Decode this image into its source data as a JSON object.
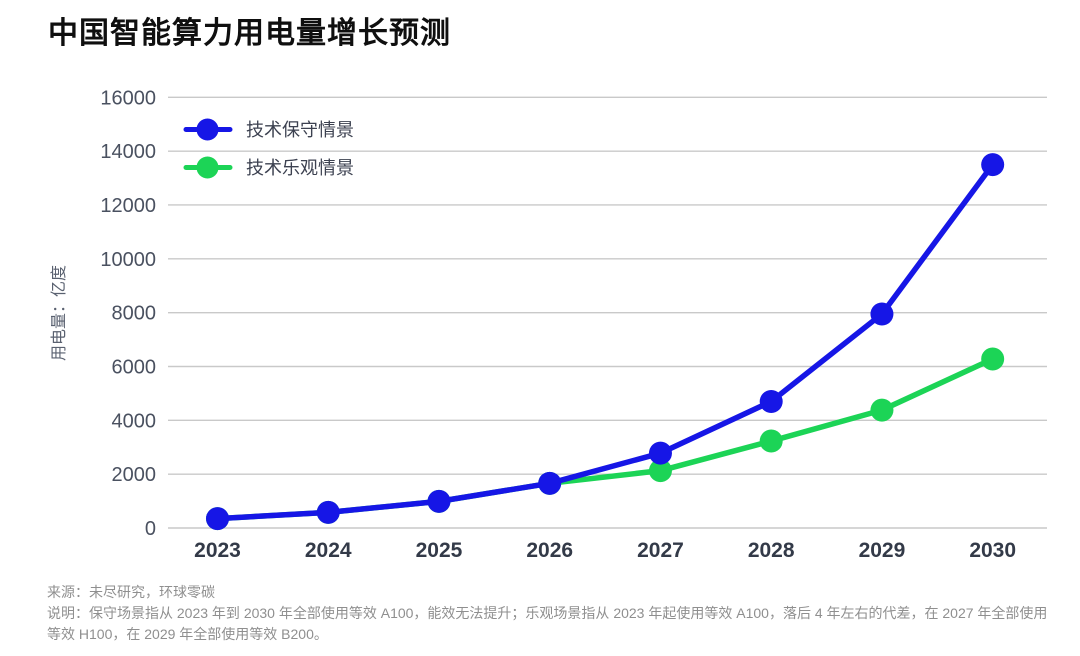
{
  "header": {
    "title": "中国智能算力用电量增长预测"
  },
  "footer": {
    "source": "来源：未尽研究，环球零碳",
    "note": "说明：保守场景指从 2023 年到 2030 年全部使用等效 A100，能效无法提升；乐观场景指从 2023 年起使用等效 A100，落后 4 年左右的代差，在 2027 年全部使用等效 H100，在 2029 年全部使用等效 B200。"
  },
  "chart_data": {
    "type": "line",
    "title": "中国智能算力用电量增长预测",
    "xlabel": "",
    "ylabel": "用电量：亿度",
    "categories": [
      "2023",
      "2024",
      "2025",
      "2026",
      "2027",
      "2028",
      "2029",
      "2030"
    ],
    "y_ticks": [
      0,
      2000,
      4000,
      6000,
      8000,
      10000,
      12000,
      14000,
      16000
    ],
    "ylim": [
      0,
      16000
    ],
    "grid": true,
    "legend_position": "top-left",
    "series": [
      {
        "key": "conservative",
        "name": "技术保守情景",
        "color": "#1616E6",
        "values": [
          350,
          580,
          990,
          1660,
          2780,
          4700,
          7950,
          13500
        ]
      },
      {
        "key": "optimistic",
        "name": "技术乐观情景",
        "color": "#1CD456",
        "values": [
          350,
          580,
          990,
          1660,
          2130,
          3230,
          4380,
          6280
        ]
      }
    ],
    "palette": {
      "grid_line": "#C9C9C9",
      "y_tick_text": "#4A5160",
      "x_tick_text": "#333A48",
      "axis_title_text": "#5A6170",
      "legend_text": "#3C4150",
      "title_text": "#0F0F0F",
      "footer_text": "#8F8F8F",
      "background": "#FFFFFF"
    }
  }
}
